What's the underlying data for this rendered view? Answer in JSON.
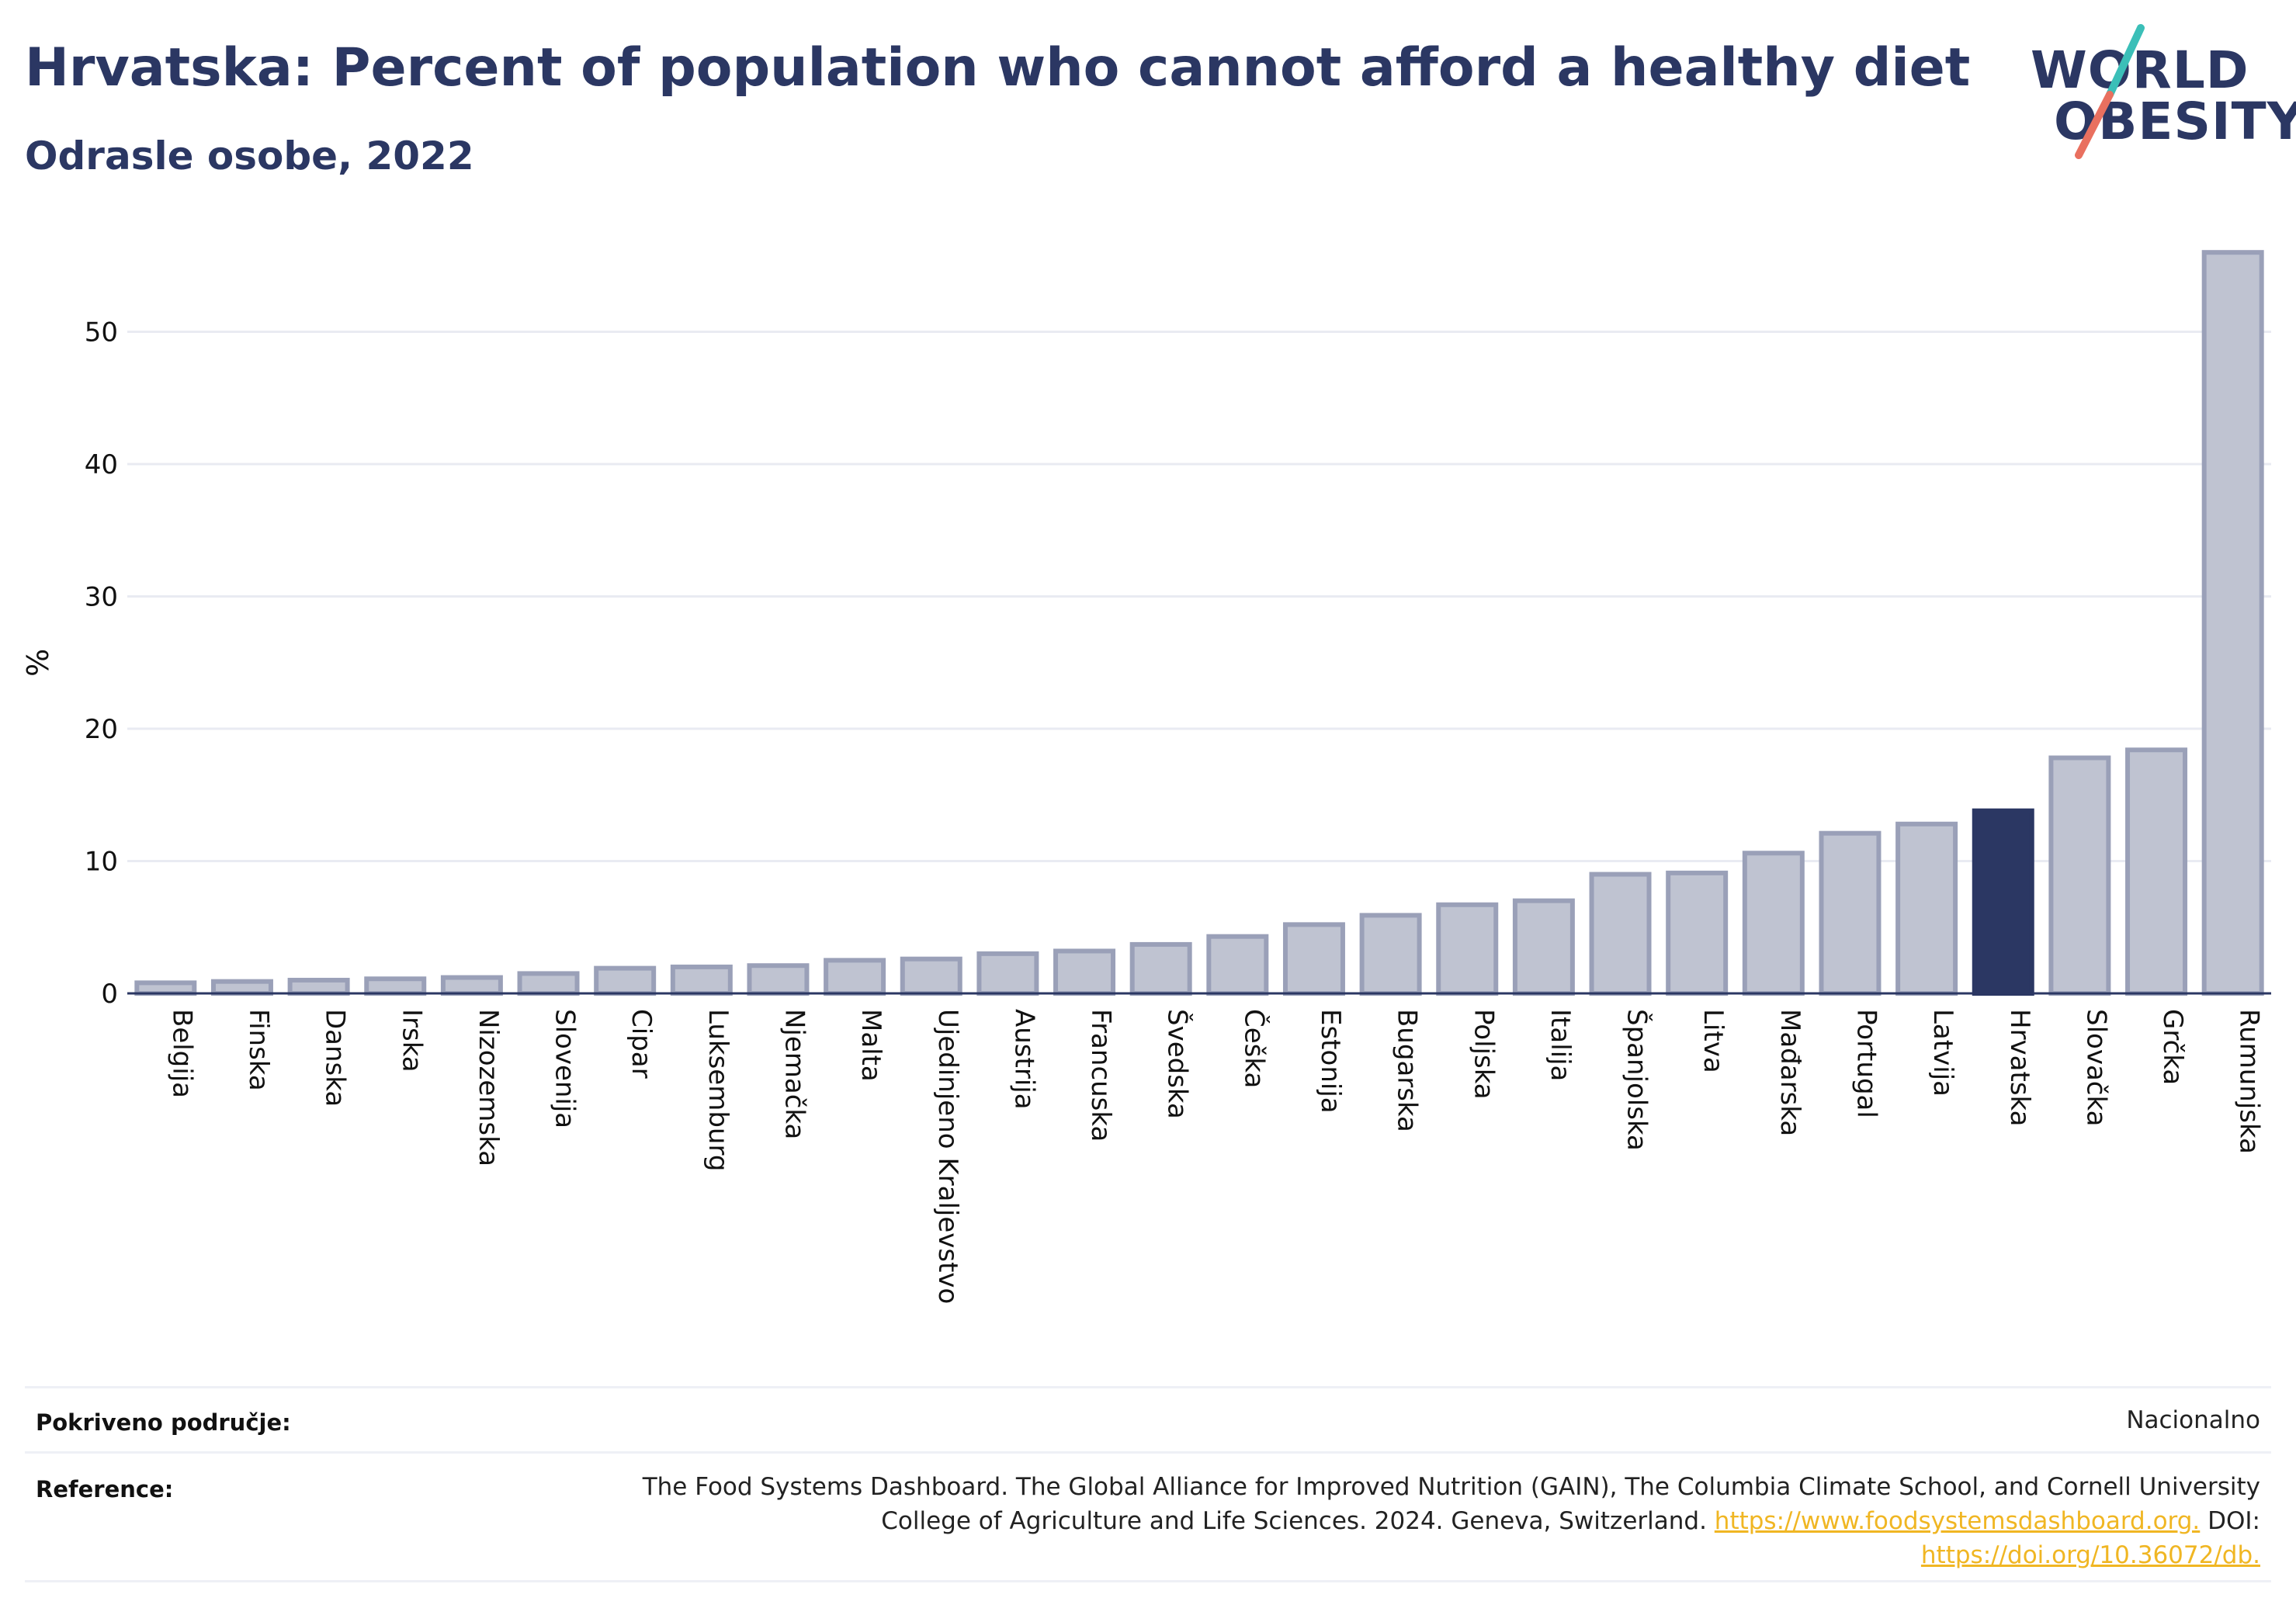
{
  "header": {
    "title": "Hrvatska: Percent of population who cannot afford a healthy diet",
    "subtitle": "Odrasle osobe, 2022"
  },
  "logo": {
    "line1": "WORLD",
    "line2": "OBESITY",
    "accent_teal": "#3bbfb8",
    "accent_coral": "#e9705f"
  },
  "chart_data": {
    "type": "bar",
    "ylabel": "%",
    "ylim": [
      0,
      58
    ],
    "yticks": [
      0,
      10,
      20,
      30,
      40,
      50
    ],
    "grid": true,
    "highlight": "Hrvatska",
    "colors": {
      "bar": "#bfc3d1",
      "bar_stroke": "#9aa0b8",
      "highlight": "#2b3763"
    },
    "categories": [
      "Belgija",
      "Finska",
      "Danska",
      "Irska",
      "Nizozemska",
      "Slovenija",
      "Cipar",
      "Luksemburg",
      "Njemačka",
      "Malta",
      "Ujedinjeno Kraljevstvo",
      "Austrija",
      "Francuska",
      "Švedska",
      "Češka",
      "Estonija",
      "Bugarska",
      "Poljska",
      "Italija",
      "Španjolska",
      "Litva",
      "Mađarska",
      "Portugal",
      "Latvija",
      "Hrvatska",
      "Slovačka",
      "Grčka",
      "Rumunjska"
    ],
    "values": [
      0.8,
      0.9,
      1.0,
      1.1,
      1.2,
      1.5,
      1.9,
      2.0,
      2.1,
      2.5,
      2.6,
      3.0,
      3.2,
      3.7,
      4.3,
      5.2,
      5.9,
      6.7,
      7.0,
      9.0,
      9.1,
      10.6,
      12.1,
      12.8,
      13.8,
      17.8,
      18.4,
      56.0
    ]
  },
  "footer": {
    "coverage_label": "Pokriveno područje:",
    "coverage_value": "Nacionalno",
    "reference_label": "Reference:",
    "reference_line1": "The Food Systems Dashboard. The Global Alliance for Improved Nutrition (GAIN), The Columbia Climate School, and Cornell University",
    "reference_line2_text": "College of Agriculture and Life Sciences. 2024. Geneva, Switzerland.",
    "reference_url1": "https://www.foodsystemsdashboard.org.",
    "reference_doi_label": "DOI:",
    "reference_url2": "https://doi.org/10.36072/db."
  }
}
